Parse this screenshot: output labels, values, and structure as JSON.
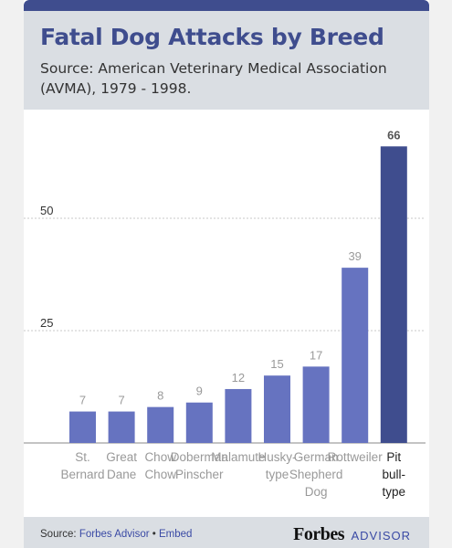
{
  "header": {
    "title": "Fatal Dog Attacks by Breed",
    "subtitle": "Source: American Veterinary Medical Association (AVMA), 1979 - 1998."
  },
  "chart_data": {
    "type": "bar",
    "categories": [
      [
        "St.",
        "Bernard"
      ],
      [
        "Great",
        "Dane"
      ],
      [
        "Chow",
        "Chow"
      ],
      [
        "Doberman",
        "Pinscher"
      ],
      [
        "Malamute"
      ],
      [
        "Husky-",
        "type"
      ],
      [
        "German",
        "Shepherd",
        "Dog"
      ],
      [
        "Rottweiler"
      ],
      [
        "Pit",
        "bull-",
        "type"
      ]
    ],
    "values": [
      7,
      7,
      8,
      9,
      12,
      15,
      17,
      39,
      66
    ],
    "y_ticks": [
      25,
      50
    ],
    "ylim": [
      0,
      66
    ],
    "highlight_index": 8,
    "colors": {
      "bar": "#6673c0",
      "highlight": "#3f4d8e",
      "value_label": "#9a9a9a",
      "highlight_label": "#555555",
      "tick_label": "#333333",
      "category_label": "#999999",
      "highlight_category_label": "#222222",
      "gridline": "#c8c8c8",
      "baseline": "#888888"
    }
  },
  "footer": {
    "source_prefix": "Source:",
    "source_link": "Forbes Advisor",
    "separator": "•",
    "embed_link": "Embed",
    "brand_name": "Forbes",
    "brand_suffix": "ADVISOR"
  }
}
